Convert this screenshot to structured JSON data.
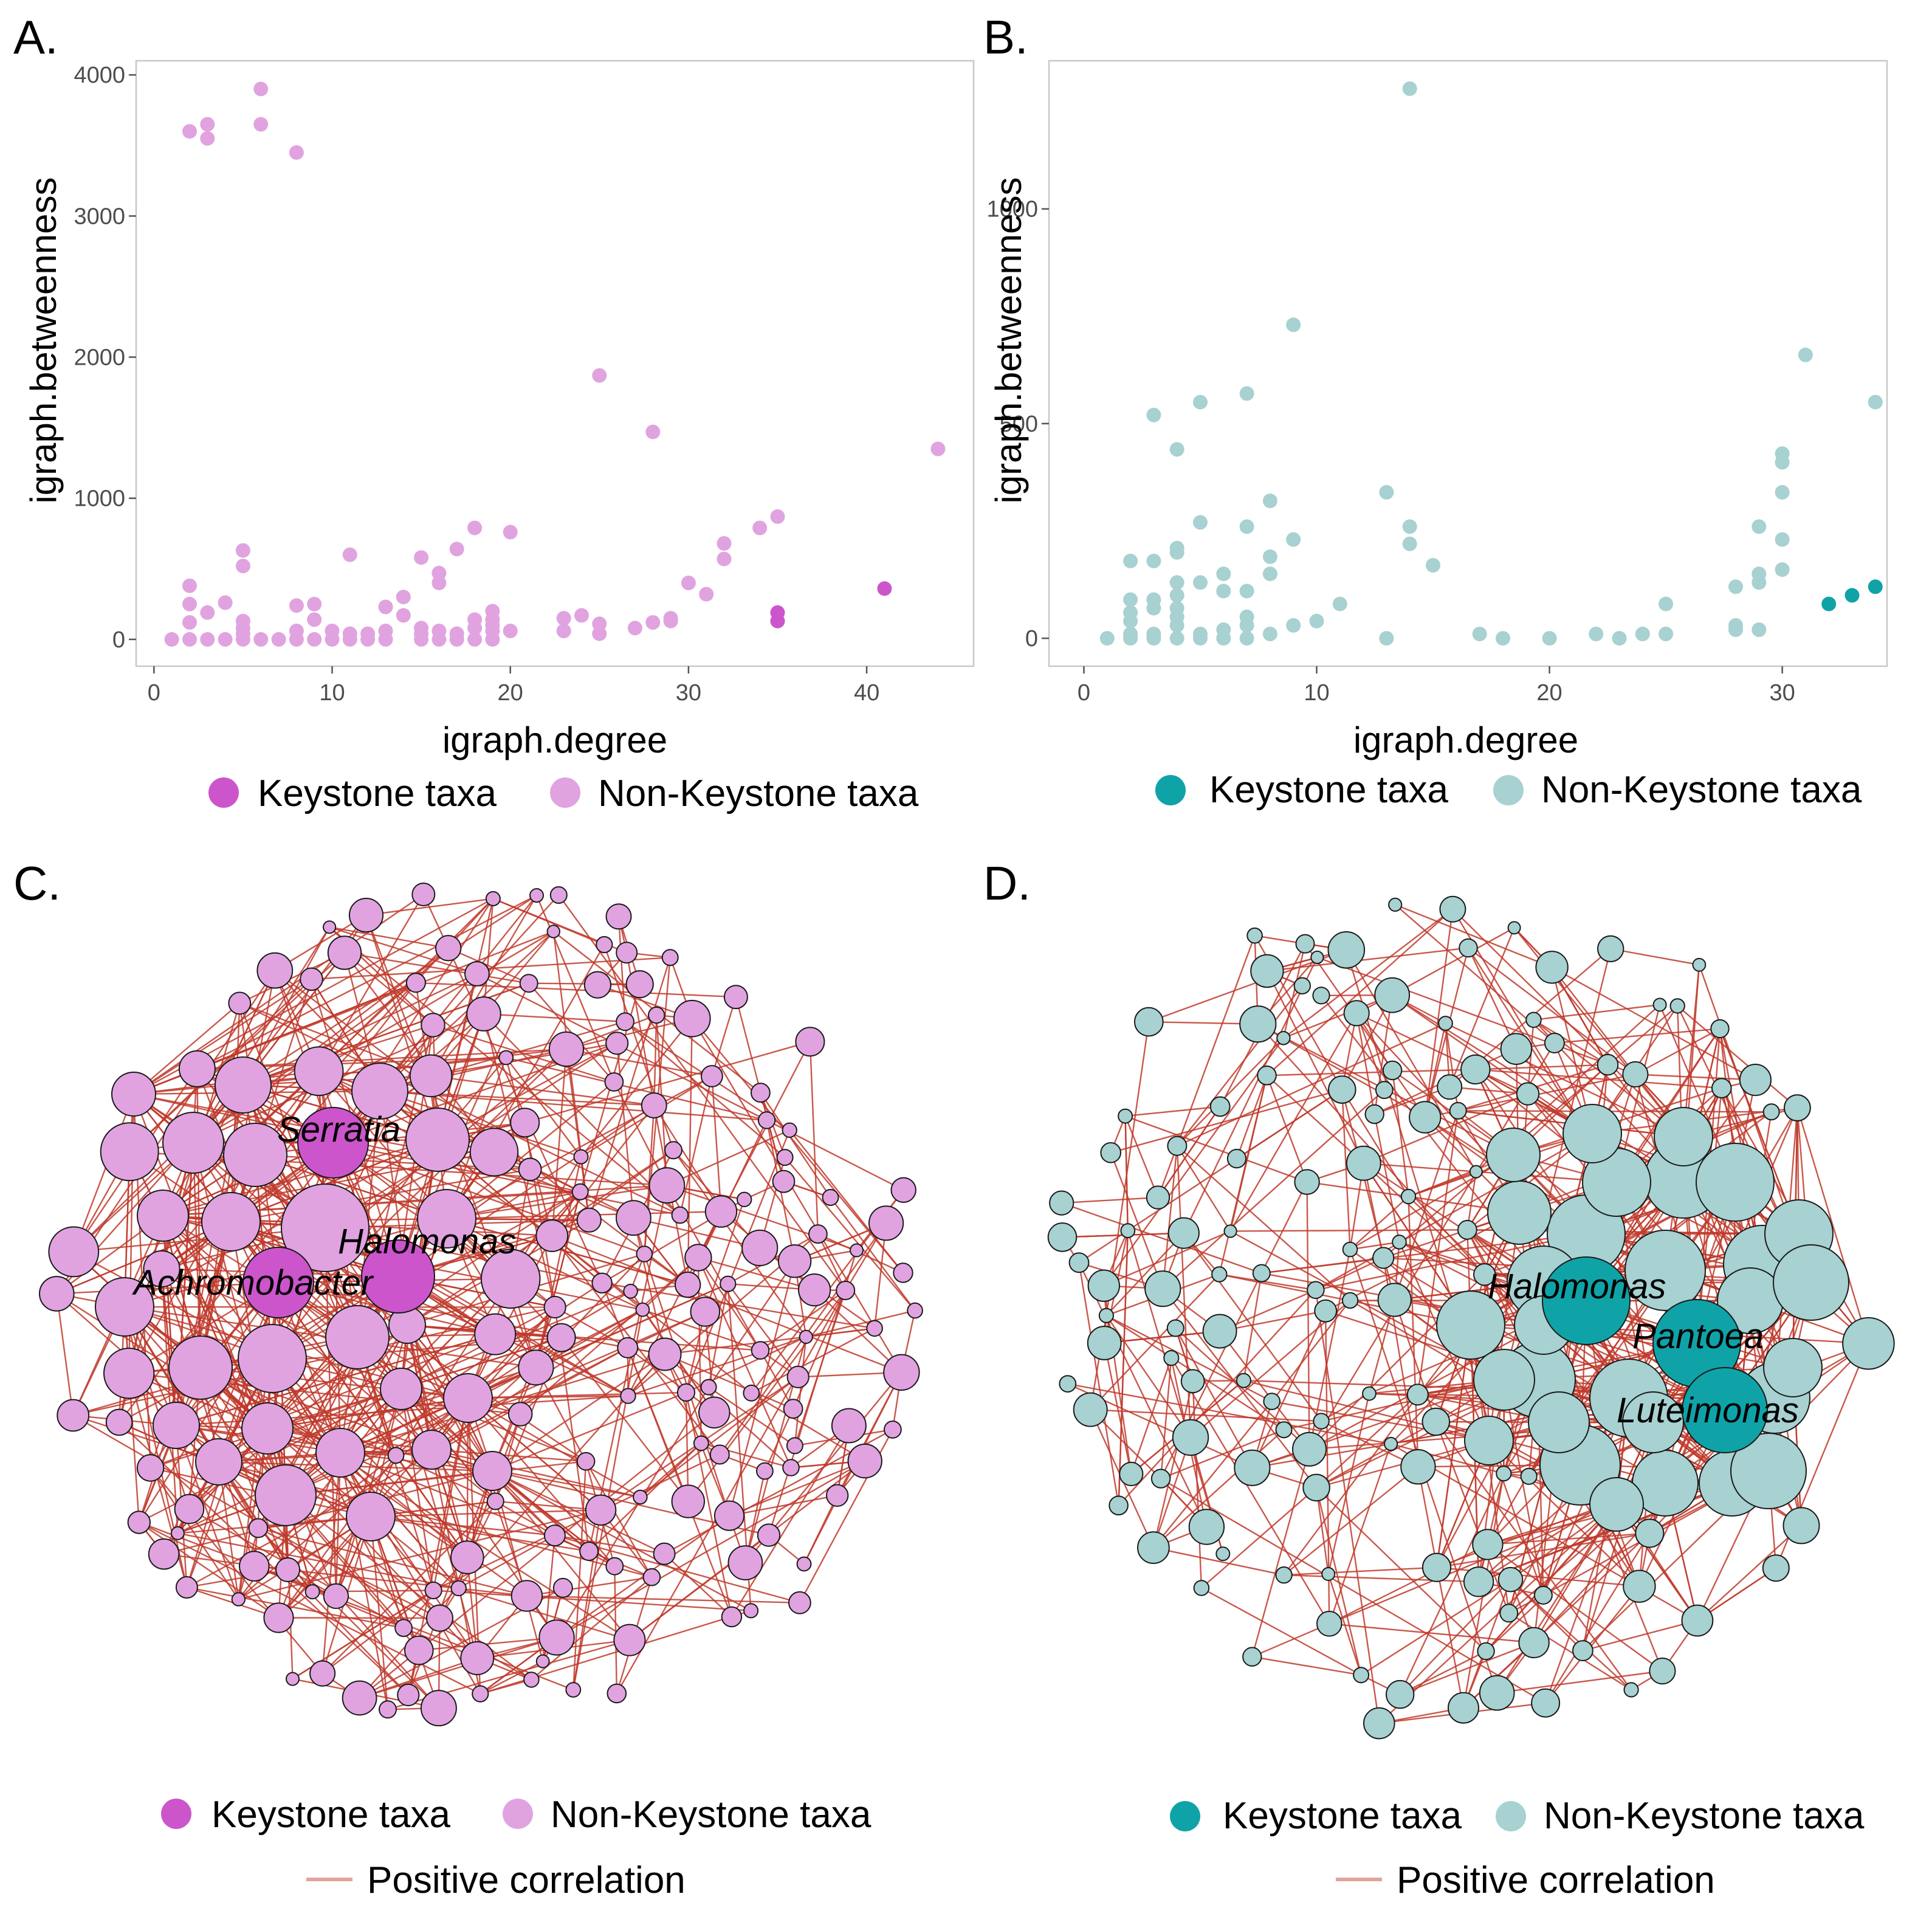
{
  "colors": {
    "a_keystone": "#cc55cc",
    "a_nonkeystone": "#e0a3e0",
    "b_keystone": "#0fa3a8",
    "b_nonkeystone": "#a8d1d1",
    "edge": "#c0392b",
    "edge_legend": "#e1a49c"
  },
  "legend": {
    "keystone": "Keystone taxa",
    "nonkeystone": "Non-Keystone taxa",
    "positive": "Positive correlation"
  },
  "chart_data": [
    {
      "id": "A",
      "panel_label": "A.",
      "type": "scatter",
      "xlabel": "igraph.degree",
      "ylabel": "igraph.betweenness",
      "xlim": [
        -1,
        46
      ],
      "ylim": [
        -190,
        4100
      ],
      "xticks": [
        0,
        10,
        20,
        30,
        40
      ],
      "yticks": [
        0,
        1000,
        2000,
        3000,
        4000
      ],
      "series": [
        {
          "name": "Non-Keystone taxa",
          "points": [
            [
              2,
              3600
            ],
            [
              3,
              3650
            ],
            [
              3,
              3550
            ],
            [
              6,
              3900
            ],
            [
              6,
              3650
            ],
            [
              8,
              3450
            ],
            [
              25,
              1870
            ],
            [
              28,
              1470
            ],
            [
              44,
              1350
            ],
            [
              5,
              630
            ],
            [
              5,
              520
            ],
            [
              2,
              380
            ],
            [
              11,
              600
            ],
            [
              18,
              790
            ],
            [
              20,
              760
            ],
            [
              15,
              580
            ],
            [
              16,
              470
            ],
            [
              16,
              400
            ],
            [
              17,
              640
            ],
            [
              14,
              300
            ],
            [
              14,
              170
            ],
            [
              13,
              230
            ],
            [
              35,
              870
            ],
            [
              34,
              790
            ],
            [
              32,
              680
            ],
            [
              32,
              570
            ],
            [
              30,
              400
            ],
            [
              31,
              320
            ],
            [
              24,
              170
            ],
            [
              23,
              150
            ],
            [
              25,
              110
            ],
            [
              27,
              80
            ],
            [
              28,
              120
            ],
            [
              29,
              150
            ],
            [
              29,
              130
            ],
            [
              2,
              250
            ],
            [
              2,
              120
            ],
            [
              3,
              190
            ],
            [
              4,
              260
            ],
            [
              5,
              130
            ],
            [
              5,
              80
            ],
            [
              5,
              40
            ],
            [
              8,
              240
            ],
            [
              9,
              250
            ],
            [
              9,
              140
            ],
            [
              8,
              60
            ],
            [
              10,
              60
            ],
            [
              11,
              40
            ],
            [
              12,
              40
            ],
            [
              13,
              60
            ],
            [
              15,
              80
            ],
            [
              15,
              40
            ],
            [
              16,
              60
            ],
            [
              17,
              40
            ],
            [
              18,
              140
            ],
            [
              18,
              80
            ],
            [
              19,
              200
            ],
            [
              19,
              140
            ],
            [
              19,
              100
            ],
            [
              19,
              60
            ],
            [
              20,
              60
            ],
            [
              23,
              60
            ],
            [
              25,
              40
            ],
            [
              1,
              0
            ],
            [
              2,
              0
            ],
            [
              3,
              0
            ],
            [
              4,
              0
            ],
            [
              5,
              0
            ],
            [
              6,
              0
            ],
            [
              7,
              0
            ],
            [
              8,
              0
            ],
            [
              9,
              0
            ],
            [
              10,
              0
            ],
            [
              11,
              0
            ],
            [
              12,
              0
            ],
            [
              13,
              0
            ],
            [
              15,
              0
            ],
            [
              16,
              0
            ],
            [
              17,
              0
            ],
            [
              18,
              0
            ],
            [
              19,
              0
            ]
          ]
        },
        {
          "name": "Keystone taxa",
          "points": [
            [
              35,
              190
            ],
            [
              35,
              130
            ],
            [
              41,
              360
            ]
          ]
        }
      ]
    },
    {
      "id": "B",
      "panel_label": "B.",
      "type": "scatter",
      "xlabel": "igraph.degree",
      "ylabel": "igraph.betweenness",
      "xlim": [
        -1.5,
        34.5
      ],
      "ylim": [
        -65,
        1345
      ],
      "xticks": [
        0,
        10,
        20,
        30
      ],
      "yticks": [
        0,
        500,
        1000
      ],
      "series": [
        {
          "name": "Non-Keystone taxa",
          "points": [
            [
              14,
              1280
            ],
            [
              9,
              730
            ],
            [
              31,
              660
            ],
            [
              34,
              550
            ],
            [
              5,
              550
            ],
            [
              7,
              570
            ],
            [
              3,
              520
            ],
            [
              4,
              440
            ],
            [
              30,
              430
            ],
            [
              30,
              410
            ],
            [
              30,
              340
            ],
            [
              13,
              340
            ],
            [
              8,
              320
            ],
            [
              5,
              270
            ],
            [
              7,
              260
            ],
            [
              14,
              260
            ],
            [
              14,
              220
            ],
            [
              9,
              230
            ],
            [
              29,
              260
            ],
            [
              30,
              230
            ],
            [
              4,
              210
            ],
            [
              4,
              200
            ],
            [
              8,
              190
            ],
            [
              15,
              170
            ],
            [
              2,
              180
            ],
            [
              3,
              180
            ],
            [
              6,
              150
            ],
            [
              8,
              150
            ],
            [
              29,
              150
            ],
            [
              29,
              130
            ],
            [
              28,
              120
            ],
            [
              30,
              160
            ],
            [
              4,
              130
            ],
            [
              5,
              130
            ],
            [
              6,
              110
            ],
            [
              7,
              110
            ],
            [
              4,
              100
            ],
            [
              3,
              90
            ],
            [
              3,
              70
            ],
            [
              2,
              90
            ],
            [
              2,
              60
            ],
            [
              2,
              40
            ],
            [
              4,
              70
            ],
            [
              4,
              50
            ],
            [
              7,
              50
            ],
            [
              11,
              80
            ],
            [
              7,
              30
            ],
            [
              6,
              20
            ],
            [
              10,
              40
            ],
            [
              9,
              30
            ],
            [
              8,
              10
            ],
            [
              5,
              10
            ],
            [
              3,
              10
            ],
            [
              2,
              10
            ],
            [
              4,
              30
            ],
            [
              28,
              30
            ],
            [
              28,
              20
            ],
            [
              29,
              20
            ],
            [
              25,
              80
            ],
            [
              1,
              0
            ],
            [
              2,
              0
            ],
            [
              3,
              0
            ],
            [
              4,
              0
            ],
            [
              5,
              0
            ],
            [
              6,
              0
            ],
            [
              7,
              0
            ],
            [
              13,
              0
            ],
            [
              17,
              10
            ],
            [
              18,
              0
            ],
            [
              20,
              0
            ],
            [
              22,
              10
            ],
            [
              23,
              0
            ],
            [
              24,
              10
            ],
            [
              25,
              10
            ]
          ]
        },
        {
          "name": "Keystone taxa",
          "points": [
            [
              32,
              80
            ],
            [
              33,
              100
            ],
            [
              34,
              120
            ]
          ]
        }
      ]
    },
    {
      "id": "C",
      "panel_label": "C.",
      "type": "network",
      "node_labels": [
        "Serratia",
        "Halomonas",
        "Achromobacter"
      ]
    },
    {
      "id": "D",
      "panel_label": "D.",
      "type": "network",
      "node_labels": [
        "Halomonas",
        "Pantoea",
        "Luteimonas"
      ]
    }
  ]
}
